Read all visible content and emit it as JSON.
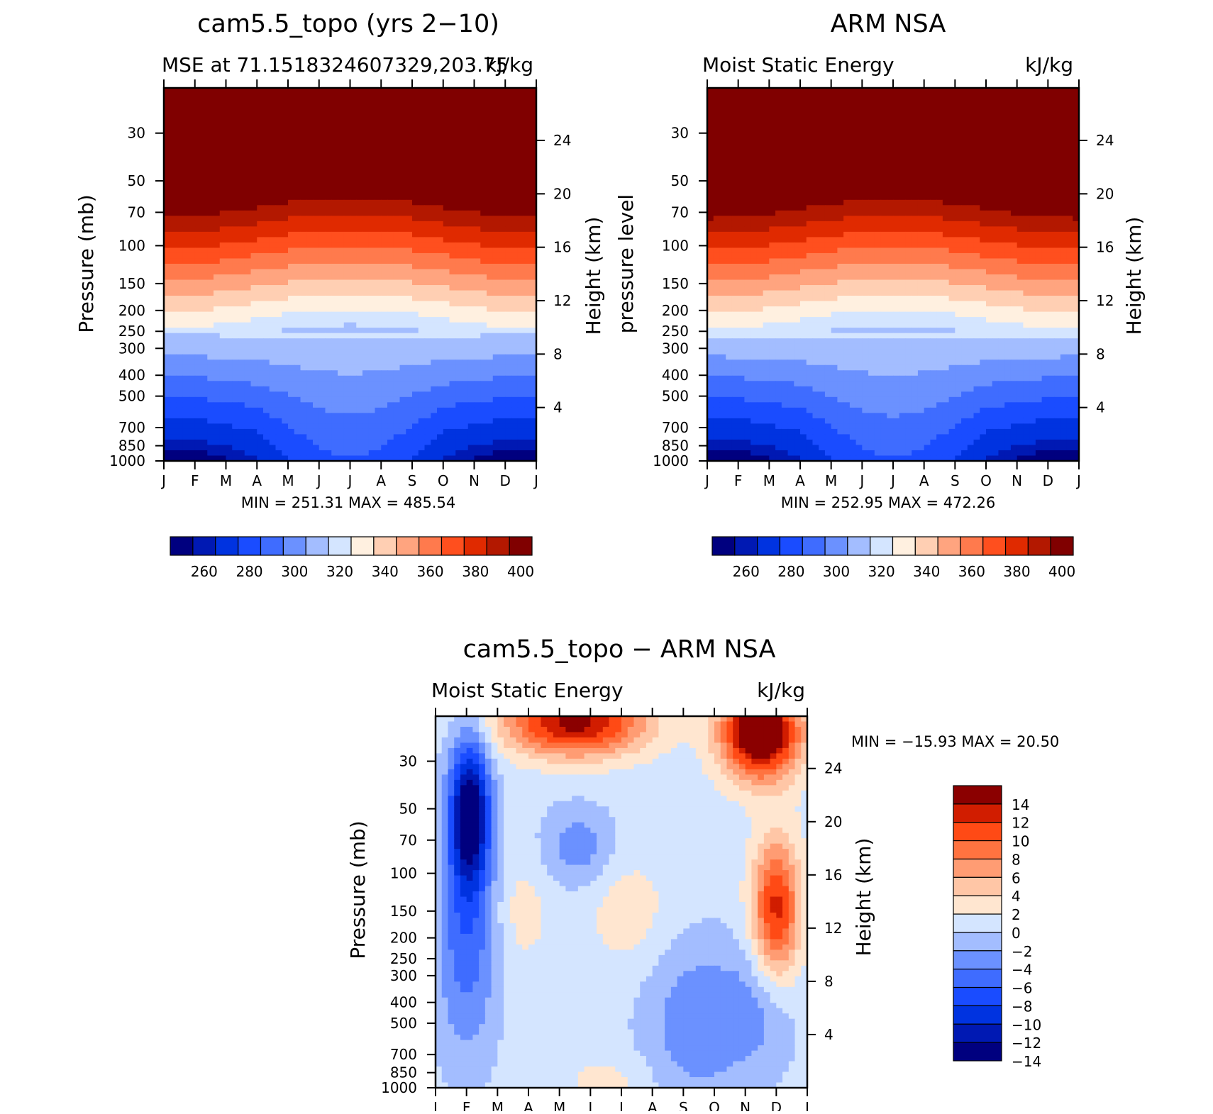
{
  "chart_data": [
    {
      "id": "p1",
      "type": "contour",
      "title": "cam5.5_topo (yrs 2−10)",
      "subtitle_left": "MSE at 71.1518324607329,203.75",
      "subtitle_right": "kJ/kg",
      "ylabel": "Pressure (mb)",
      "y2label": "Height (km)",
      "x": [
        "J",
        "F",
        "M",
        "A",
        "M",
        "J",
        "J",
        "A",
        "S",
        "O",
        "N",
        "D",
        "J"
      ],
      "pressure_ticks": [
        30,
        50,
        70,
        100,
        150,
        200,
        250,
        300,
        400,
        500,
        700,
        850,
        1000
      ],
      "height_ticks": [
        24,
        20,
        16,
        12,
        8,
        4
      ],
      "stats": "MIN = 251.31  MAX = 485.54",
      "colorbar_labels": [
        "260",
        "280",
        "300",
        "320",
        "340",
        "360",
        "380",
        "400"
      ],
      "levels": [
        255,
        260,
        270,
        280,
        290,
        300,
        310,
        320,
        330,
        340,
        350,
        360,
        370,
        380,
        390,
        400
      ]
    },
    {
      "id": "p2",
      "type": "contour",
      "title": "ARM NSA",
      "subtitle_left": "Moist Static Energy",
      "subtitle_right": "kJ/kg",
      "ylabel": "pressure level",
      "y2label": "Height (km)",
      "x": [
        "J",
        "F",
        "M",
        "A",
        "M",
        "J",
        "J",
        "A",
        "S",
        "O",
        "N",
        "D",
        "J"
      ],
      "pressure_ticks": [
        30,
        50,
        70,
        100,
        150,
        200,
        250,
        300,
        400,
        500,
        700,
        850,
        1000
      ],
      "height_ticks": [
        24,
        20,
        16,
        12,
        8,
        4
      ],
      "stats": "MIN = 252.95  MAX = 472.26",
      "colorbar_labels": [
        "260",
        "280",
        "300",
        "320",
        "340",
        "360",
        "380",
        "400"
      ],
      "levels": [
        255,
        260,
        270,
        280,
        290,
        300,
        310,
        320,
        330,
        340,
        350,
        360,
        370,
        380,
        390,
        400
      ]
    },
    {
      "id": "p3",
      "type": "contour",
      "title": "cam5.5_topo − ARM NSA",
      "subtitle_left": "Moist Static Energy",
      "subtitle_right": "kJ/kg",
      "ylabel": "Pressure (mb)",
      "y2label": "Height (km)",
      "x": [
        "J",
        "F",
        "M",
        "A",
        "M",
        "J",
        "J",
        "A",
        "S",
        "O",
        "N",
        "D",
        "J"
      ],
      "pressure_ticks": [
        30,
        50,
        70,
        100,
        150,
        200,
        250,
        300,
        400,
        500,
        700,
        850,
        1000
      ],
      "height_ticks": [
        24,
        20,
        16,
        12,
        8,
        4
      ],
      "stats": "MIN = −15.93  MAX =   20.50",
      "colorbar_labels": [
        "14",
        "12",
        "10",
        "8",
        "6",
        "4",
        "2",
        "0",
        "−2",
        "−4",
        "−6",
        "−8",
        "−10",
        "−12",
        "−14"
      ],
      "levels": [
        -14,
        -12,
        -10,
        -8,
        -6,
        -4,
        -2,
        0,
        2,
        4,
        6,
        8,
        10,
        12,
        14
      ]
    }
  ],
  "colors": {
    "mse_palette": [
      "#00007f",
      "#0019b3",
      "#0033e0",
      "#1a4cff",
      "#3f6cff",
      "#6b91ff",
      "#a3bdff",
      "#d4e5ff",
      "#fff0e0",
      "#ffcfb3",
      "#ffa47f",
      "#ff7a4d",
      "#ff4f1e",
      "#e02a00",
      "#b31800",
      "#800000"
    ],
    "diff_palette": [
      "#00007f",
      "#0019b3",
      "#0033e0",
      "#1a4cff",
      "#3f6cff",
      "#6b91ff",
      "#a3bdff",
      "#d4e5ff",
      "#ffe6d0",
      "#ffc6a6",
      "#ff9c73",
      "#ff7340",
      "#ff4a15",
      "#d11d00",
      "#8b0000"
    ]
  }
}
